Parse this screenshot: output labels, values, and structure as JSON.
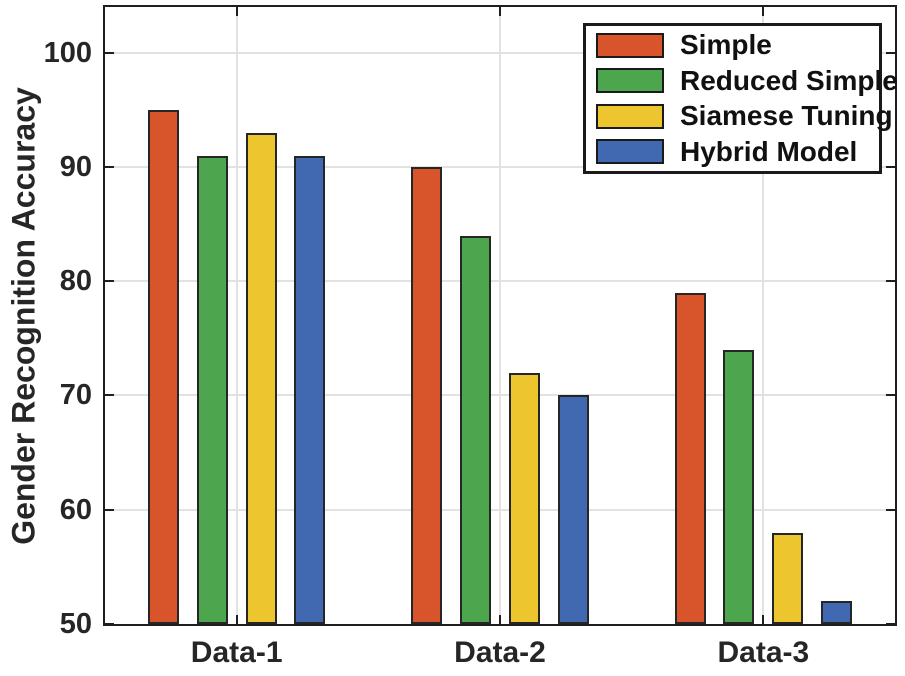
{
  "chart_data": {
    "type": "bar",
    "title": "",
    "xlabel": "",
    "ylabel": "Gender Recognition Accuracy",
    "categories": [
      "Data-1",
      "Data-2",
      "Data-3"
    ],
    "series": [
      {
        "name": "Simple",
        "color": "#d8552b",
        "values": [
          95,
          90,
          79
        ]
      },
      {
        "name": "Reduced Simple",
        "color": "#4da64d",
        "values": [
          91,
          84,
          74
        ]
      },
      {
        "name": "Siamese Tuning",
        "color": "#edc52f",
        "values": [
          93,
          72,
          58
        ]
      },
      {
        "name": "Hybrid Model",
        "color": "#4169b1",
        "values": [
          91,
          70,
          52
        ]
      }
    ],
    "ylim": [
      50,
      104
    ],
    "yticks": [
      50,
      60,
      70,
      80,
      90,
      100
    ],
    "grid": true,
    "grid_color": "#e2e2e2",
    "axis_color": "#1f1f1f",
    "bar_edge_color": "#262626",
    "tick_label_color": "#262626",
    "legend_position": "top-right"
  }
}
